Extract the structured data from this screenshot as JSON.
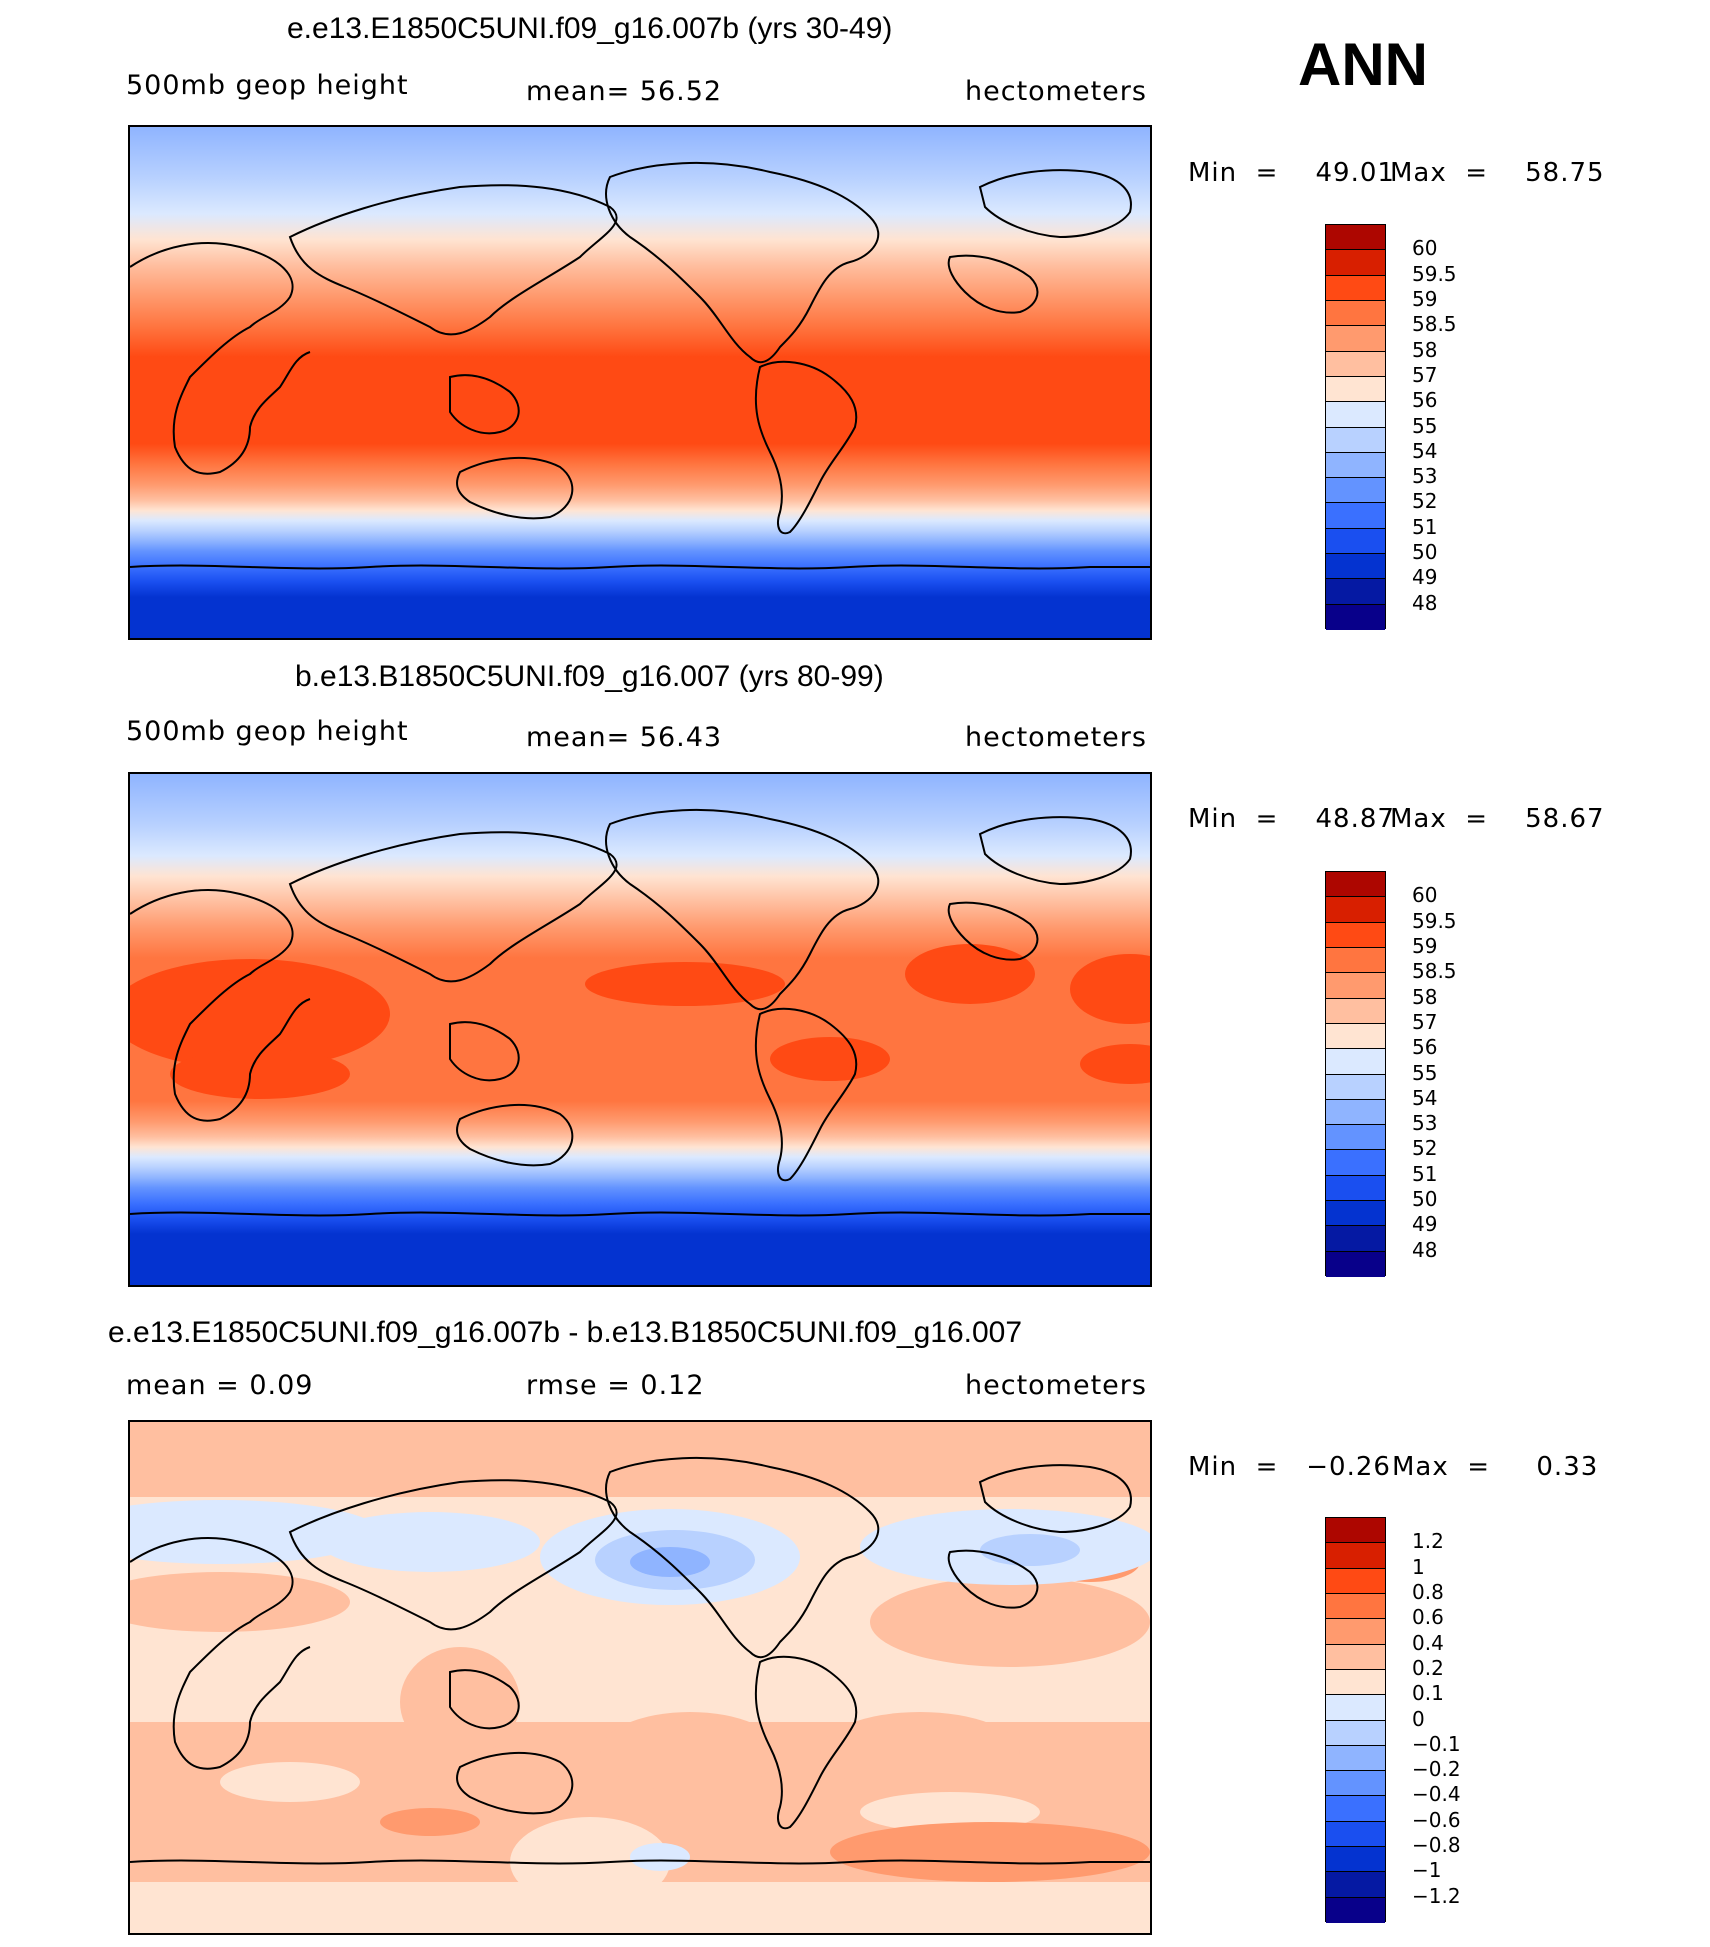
{
  "season_label": "ANN",
  "chart_data": [
    {
      "type": "heatmap",
      "title": "e.e13.E1850C5UNI.f09_g16.007b (yrs 30-49)",
      "variable": "500mb  geop  height",
      "mean_text": "mean=   56.52",
      "units": "hectometers",
      "min_text": "Min  =    49.01",
      "max_text": "Max  =    58.75",
      "min": 49.01,
      "max": 58.75,
      "colorbar_levels": [
        "60",
        "59.5",
        "59",
        "58.5",
        "58",
        "57",
        "56",
        "55",
        "54",
        "53",
        "52",
        "51",
        "50",
        "49",
        "48"
      ],
      "band_colors": [
        "#ad0600",
        "#d81f00",
        "#ff4a14",
        "#ff7540",
        "#ff9a6e",
        "#ffbfa0",
        "#ffe4d2",
        "#dbe9ff",
        "#b8d1ff",
        "#8fb4ff",
        "#6393ff",
        "#3a70ff",
        "#1a4ff0",
        "#0433d0",
        "#0519a3",
        "#08008a"
      ]
    },
    {
      "type": "heatmap",
      "title": "b.e13.B1850C5UNI.f09_g16.007 (yrs 80-99)",
      "variable": "500mb  geop  height",
      "mean_text": "mean=   56.43",
      "units": "hectometers",
      "min_text": "Min  =    48.87",
      "max_text": "Max  =    58.67",
      "min": 48.87,
      "max": 58.67,
      "colorbar_levels": [
        "60",
        "59.5",
        "59",
        "58.5",
        "58",
        "57",
        "56",
        "55",
        "54",
        "53",
        "52",
        "51",
        "50",
        "49",
        "48"
      ],
      "band_colors": [
        "#ad0600",
        "#d81f00",
        "#ff4a14",
        "#ff7540",
        "#ff9a6e",
        "#ffbfa0",
        "#ffe4d2",
        "#dbe9ff",
        "#b8d1ff",
        "#8fb4ff",
        "#6393ff",
        "#3a70ff",
        "#1a4ff0",
        "#0433d0",
        "#0519a3",
        "#08008a"
      ]
    },
    {
      "type": "heatmap",
      "title": "e.e13.E1850C5UNI.f09_g16.007b - b.e13.B1850C5UNI.f09_g16.007",
      "mean_text": "mean =     0.09",
      "rmse_text": "rmse =     0.12",
      "units": "hectometers",
      "min_text": "Min  =   −0.26",
      "max_text": "Max  =     0.33",
      "min": -0.26,
      "max": 0.33,
      "rmse": 0.12,
      "colorbar_levels": [
        "1.2",
        "1",
        "0.8",
        "0.6",
        "0.4",
        "0.2",
        "0.1",
        "0",
        "−0.1",
        "−0.2",
        "−0.4",
        "−0.6",
        "−0.8",
        "−1",
        "−1.2"
      ],
      "band_colors": [
        "#ad0600",
        "#d81f00",
        "#ff4a14",
        "#ff7540",
        "#ff9a6e",
        "#ffbfa0",
        "#ffe4d2",
        "#dbe9ff",
        "#b8d1ff",
        "#8fb4ff",
        "#6393ff",
        "#3a70ff",
        "#1a4ff0",
        "#0433d0",
        "#0519a3",
        "#08008a"
      ]
    }
  ]
}
